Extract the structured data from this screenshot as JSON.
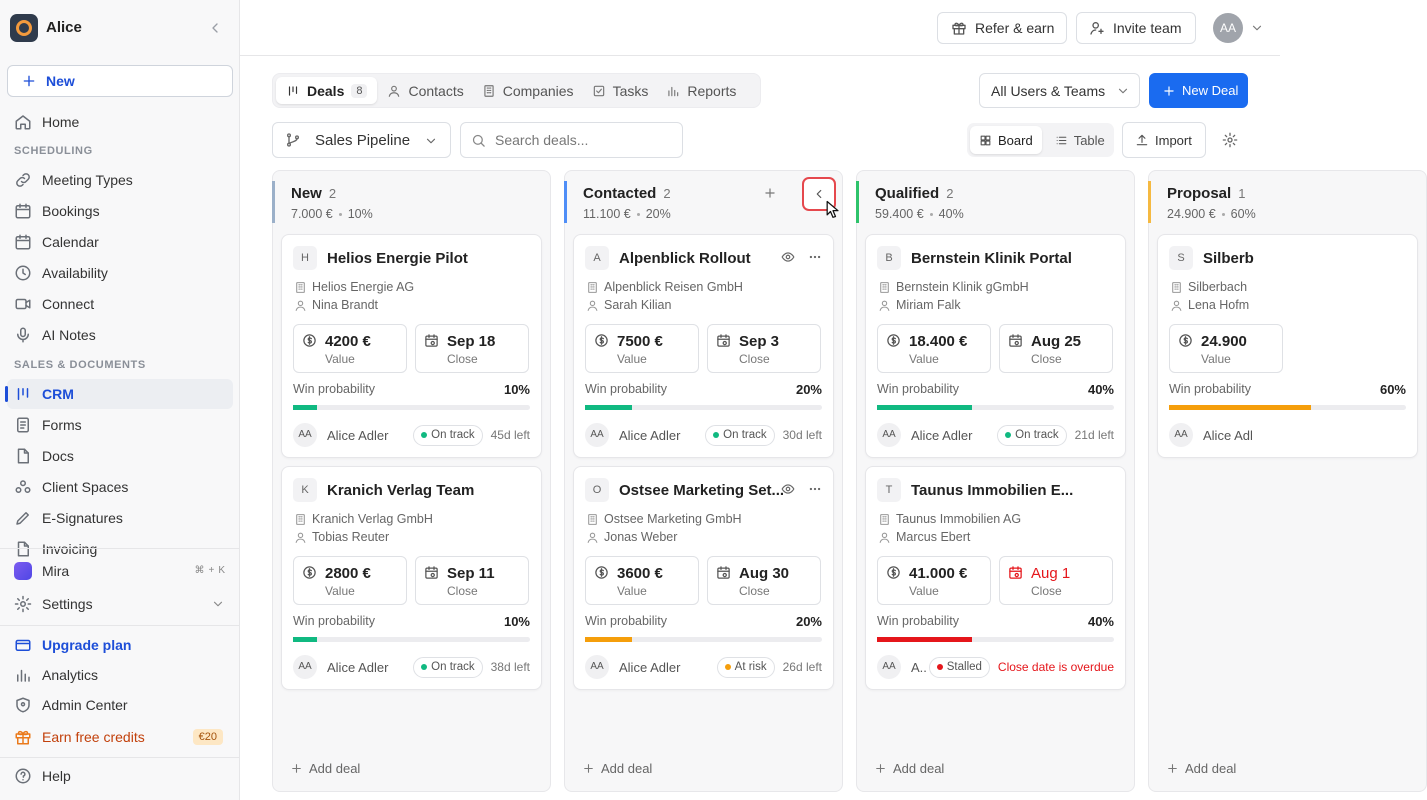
{
  "sidebar": {
    "workspace": "Alice",
    "new_button": "New",
    "home": "Home",
    "sections": [
      {
        "title": "SCHEDULING",
        "items": [
          "Meeting Types",
          "Bookings",
          "Calendar",
          "Availability",
          "Connect",
          "AI Notes"
        ]
      },
      {
        "title": "SALES & DOCUMENTS",
        "items": [
          "CRM",
          "Forms",
          "Docs",
          "Client Spaces",
          "E-Signatures",
          "Invoicing"
        ]
      }
    ],
    "mira": "Mira",
    "shortcut": [
      "⌘",
      "+",
      "K"
    ],
    "settings": "Settings",
    "bottom": [
      "Upgrade plan",
      "Analytics",
      "Admin Center",
      "Earn free credits"
    ],
    "credits_badge": "€20",
    "help": "Help"
  },
  "topbar": {
    "refer": "Refer & earn",
    "invite": "Invite team",
    "avatar": "AA"
  },
  "tabs": [
    {
      "label": "Deals",
      "count": 8
    },
    {
      "label": "Contacts"
    },
    {
      "label": "Companies"
    },
    {
      "label": "Tasks"
    },
    {
      "label": "Reports"
    }
  ],
  "filter": "All Users & Teams",
  "new_deal": "New Deal",
  "pipeline": "Sales Pipeline",
  "search_placeholder": "Search deals...",
  "views": [
    "Board",
    "Table"
  ],
  "import": "Import",
  "add_deal": "Add deal",
  "card_labels": {
    "value": "Value",
    "close": "Close",
    "win_probability": "Win probability"
  },
  "columns": [
    {
      "name": "New",
      "count": 2,
      "amount": "7.000 €",
      "percent": "10%",
      "color": "#9bb0c9",
      "deals": [
        {
          "initial": "H",
          "title": "Helios Energie Pilot",
          "company": "Helios Energie AG",
          "contact": "Nina Brandt",
          "value": "4200 €",
          "close": "Sep 18",
          "probability": {
            "value": 10,
            "label": "10%"
          },
          "bar_color": "#10b981",
          "owner_initials": "AA",
          "owner": "Alice Adler",
          "status": "On track",
          "status_color": "#10b981",
          "remaining": "45d left"
        },
        {
          "initial": "K",
          "title": "Kranich Verlag Team",
          "company": "Kranich Verlag GmbH",
          "contact": "Tobias Reuter",
          "value": "2800 €",
          "close": "Sep 11",
          "probability": {
            "value": 10,
            "label": "10%"
          },
          "bar_color": "#10b981",
          "owner_initials": "AA",
          "owner": "Alice Adler",
          "status": "On track",
          "status_color": "#10b981",
          "remaining": "38d left"
        }
      ]
    },
    {
      "name": "Contacted",
      "count": 2,
      "amount": "11.100 €",
      "percent": "20%",
      "color": "#4f8ef7",
      "deals": [
        {
          "initial": "A",
          "title": "Alpenblick Rollout",
          "company": "Alpenblick Reisen GmbH",
          "contact": "Sarah Kilian",
          "value": "7500 €",
          "close": "Sep 3",
          "probability": {
            "value": 20,
            "label": "20%"
          },
          "bar_color": "#10b981",
          "owner_initials": "AA",
          "owner": "Alice Adler",
          "status": "On track",
          "status_color": "#10b981",
          "remaining": "30d left"
        },
        {
          "initial": "O",
          "title": "Ostsee Marketing Set...",
          "company": "Ostsee Marketing GmbH",
          "contact": "Jonas Weber",
          "value": "3600 €",
          "close": "Aug 30",
          "probability": {
            "value": 20,
            "label": "20%"
          },
          "bar_color": "#f59e0b",
          "owner_initials": "AA",
          "owner": "Alice Adler",
          "status": "At risk",
          "status_color": "#f59e0b",
          "remaining": "26d left"
        }
      ]
    },
    {
      "name": "Qualified",
      "count": 2,
      "amount": "59.400 €",
      "percent": "40%",
      "color": "#2ec36b",
      "deals": [
        {
          "initial": "B",
          "title": "Bernstein Klinik Portal",
          "company": "Bernstein Klinik gGmbH",
          "contact": "Miriam Falk",
          "value": "18.400 €",
          "close": "Aug 25",
          "probability": {
            "value": 40,
            "label": "40%"
          },
          "bar_color": "#10b981",
          "owner_initials": "AA",
          "owner": "Alice Adler",
          "status": "On track",
          "status_color": "#10b981",
          "remaining": "21d left"
        },
        {
          "initial": "T",
          "title": "Taunus Immobilien E...",
          "company": "Taunus Immobilien AG",
          "contact": "Marcus Ebert",
          "value": "41.000 €",
          "close": "Aug 1",
          "close_color": "#e5161b",
          "probability": {
            "value": 40,
            "label": "40%"
          },
          "bar_color": "#e5161b",
          "owner_initials": "AA",
          "owner": "A..",
          "status": "Stalled",
          "status_color": "#e5161b",
          "remaining": "Close date is overdue",
          "remaining_color": "#e5161b"
        }
      ]
    },
    {
      "name": "Proposal",
      "count": 1,
      "amount": "24.900 €",
      "percent": "60%",
      "color": "#f5b941",
      "deals": [
        {
          "initial": "S",
          "title": "Silberb",
          "company": "Silberbach",
          "contact": "Lena Hofm",
          "value": "24.900",
          "probability": {
            "value": 60,
            "label": "60%"
          },
          "bar_color": "#f59e0b",
          "owner_initials": "AA",
          "owner": "Alice Adl"
        }
      ]
    }
  ]
}
